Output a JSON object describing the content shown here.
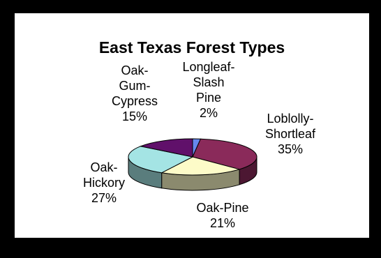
{
  "chart_data": {
    "type": "pie",
    "title": "East Texas Forest Types",
    "slices": [
      {
        "label": "Longleaf-\nSlash\nPine",
        "value": 2,
        "display": "2%",
        "color": "#6688ee"
      },
      {
        "label": "Loblolly-\nShortleaf",
        "value": 35,
        "display": "35%",
        "color": "#8a2a5a"
      },
      {
        "label": "Oak-Pine",
        "value": 21,
        "display": "21%",
        "color": "#fdfbc8"
      },
      {
        "label": "Oak-\nHickory",
        "value": 27,
        "display": "27%",
        "color": "#a4e4e4"
      },
      {
        "label": "Oak-\nGum-\nCypress",
        "value": 15,
        "display": "15%",
        "color": "#60106a"
      }
    ],
    "legend": "none",
    "three_d": true
  }
}
